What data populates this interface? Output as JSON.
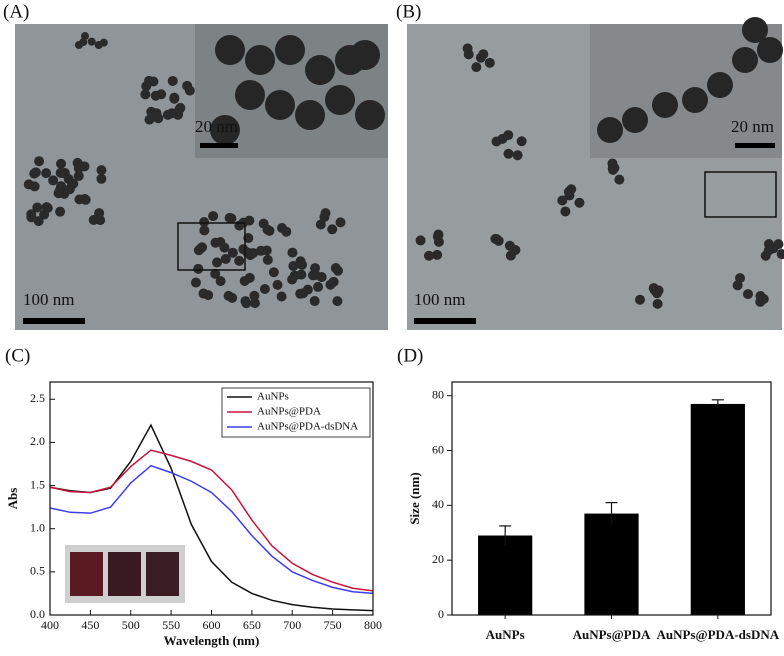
{
  "panels": {
    "a": {
      "label": "(A)",
      "inset_scale": "20 nm",
      "scale": "100 nm"
    },
    "b": {
      "label": "(B)",
      "inset_scale": "20 nm",
      "scale": "100 nm"
    }
  },
  "chart_data": [
    {
      "type": "line",
      "label": "(C)",
      "xlabel": "Wavelength (nm)",
      "ylabel": "Abs",
      "x": [
        400,
        425,
        450,
        475,
        500,
        525,
        550,
        575,
        600,
        625,
        650,
        675,
        700,
        725,
        750,
        775,
        800
      ],
      "series": [
        {
          "name": "AuNPs",
          "color": "#111111",
          "values": [
            1.48,
            1.44,
            1.42,
            1.47,
            1.78,
            2.2,
            1.7,
            1.05,
            0.62,
            0.38,
            0.25,
            0.17,
            0.12,
            0.09,
            0.07,
            0.06,
            0.05
          ]
        },
        {
          "name": "AuNPs@PDA",
          "color": "#c8143c",
          "values": [
            1.48,
            1.43,
            1.42,
            1.48,
            1.72,
            1.91,
            1.85,
            1.78,
            1.68,
            1.45,
            1.1,
            0.8,
            0.6,
            0.47,
            0.38,
            0.31,
            0.28
          ]
        },
        {
          "name": "AuNPs@PDA-dsDNA",
          "color": "#3c3cf0",
          "values": [
            1.24,
            1.19,
            1.18,
            1.25,
            1.53,
            1.73,
            1.65,
            1.55,
            1.42,
            1.2,
            0.92,
            0.68,
            0.5,
            0.4,
            0.32,
            0.27,
            0.25
          ]
        }
      ],
      "xlim": [
        400,
        800
      ],
      "xticks": [
        400,
        450,
        500,
        550,
        600,
        650,
        700,
        750,
        800
      ],
      "ylim": [
        0,
        2.7
      ],
      "yticks": [
        {
          "value": 0,
          "label": "0.0"
        },
        0.5,
        {
          "value": 1,
          "label": "1.0"
        },
        1.5,
        {
          "value": 2,
          "label": "2.0"
        },
        2.5
      ],
      "legend": "upper right"
    },
    {
      "type": "bar",
      "label": "(D)",
      "ylabel": "Size (nm)",
      "categories": [
        "AuNPs",
        "AuNPs@PDA",
        "AuNPs@PDA-dsDNA"
      ],
      "values": [
        29,
        37,
        77
      ],
      "errors": [
        3.5,
        4,
        1.5
      ],
      "color": "#000000",
      "ylim": [
        0,
        85
      ],
      "yticks": [
        0,
        20,
        40,
        60,
        80
      ]
    }
  ]
}
